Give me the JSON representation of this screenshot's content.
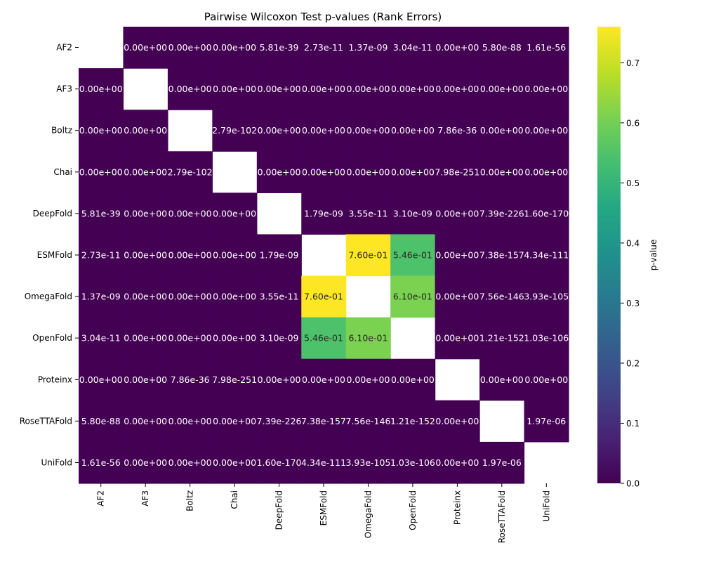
{
  "chart_data": {
    "type": "heatmap",
    "title": "Pairwise Wilcoxon Test p-values (Rank Errors)",
    "xlabel": "",
    "ylabel": "",
    "labels": [
      "AF2",
      "AF3",
      "Boltz",
      "Chai",
      "DeepFold",
      "ESMFold",
      "OmegaFold",
      "OpenFold",
      "Proteinx",
      "RoseTTAFold",
      "UniFold"
    ],
    "annotations": [
      [
        "",
        "0.00e+00",
        "0.00e+00",
        "0.00e+00",
        "5.81e-39",
        "2.73e-11",
        "1.37e-09",
        "3.04e-11",
        "0.00e+00",
        "5.80e-88",
        "1.61e-56"
      ],
      [
        "0.00e+00",
        "",
        "0.00e+00",
        "0.00e+00",
        "0.00e+00",
        "0.00e+00",
        "0.00e+00",
        "0.00e+00",
        "0.00e+00",
        "0.00e+00",
        "0.00e+00"
      ],
      [
        "0.00e+00",
        "0.00e+00",
        "",
        "2.79e-102",
        "0.00e+00",
        "0.00e+00",
        "0.00e+00",
        "0.00e+00",
        "7.86e-36",
        "0.00e+00",
        "0.00e+00"
      ],
      [
        "0.00e+00",
        "0.00e+00",
        "2.79e-102",
        "",
        "0.00e+00",
        "0.00e+00",
        "0.00e+00",
        "0.00e+00",
        "7.98e-251",
        "0.00e+00",
        "0.00e+00"
      ],
      [
        "5.81e-39",
        "0.00e+00",
        "0.00e+00",
        "0.00e+00",
        "",
        "1.79e-09",
        "3.55e-11",
        "3.10e-09",
        "0.00e+00",
        "7.39e-226",
        "1.60e-170"
      ],
      [
        "2.73e-11",
        "0.00e+00",
        "0.00e+00",
        "0.00e+00",
        "1.79e-09",
        "",
        "7.60e-01",
        "5.46e-01",
        "0.00e+00",
        "7.38e-157",
        "4.34e-111"
      ],
      [
        "1.37e-09",
        "0.00e+00",
        "0.00e+00",
        "0.00e+00",
        "3.55e-11",
        "7.60e-01",
        "",
        "6.10e-01",
        "0.00e+00",
        "7.56e-146",
        "3.93e-105"
      ],
      [
        "3.04e-11",
        "0.00e+00",
        "0.00e+00",
        "0.00e+00",
        "3.10e-09",
        "5.46e-01",
        "6.10e-01",
        "",
        "0.00e+00",
        "1.21e-152",
        "1.03e-106"
      ],
      [
        "0.00e+00",
        "0.00e+00",
        "7.86e-36",
        "7.98e-251",
        "0.00e+00",
        "0.00e+00",
        "0.00e+00",
        "0.00e+00",
        "",
        "0.00e+00",
        "0.00e+00"
      ],
      [
        "5.80e-88",
        "0.00e+00",
        "0.00e+00",
        "0.00e+00",
        "7.39e-226",
        "7.38e-157",
        "7.56e-146",
        "1.21e-152",
        "0.00e+00",
        "",
        "1.97e-06"
      ],
      [
        "1.61e-56",
        "0.00e+00",
        "0.00e+00",
        "0.00e+00",
        "1.60e-170",
        "4.34e-111",
        "3.93e-105",
        "1.03e-106",
        "0.00e+00",
        "1.97e-06",
        ""
      ]
    ],
    "colorbar": {
      "label": "p-value",
      "colormap": "viridis",
      "vmin": 0.0,
      "vmax": 0.76,
      "ticks": [
        0.0,
        0.1,
        0.2,
        0.3,
        0.4,
        0.5,
        0.6,
        0.7
      ],
      "tick_labels": [
        "0.0",
        "0.1",
        "0.2",
        "0.3",
        "0.4",
        "0.5",
        "0.6",
        "0.7"
      ]
    },
    "diagonal": "blank",
    "legend": "colorbar-right"
  }
}
